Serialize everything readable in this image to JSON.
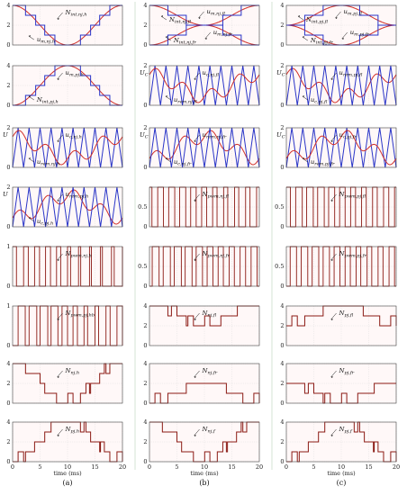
{
  "figure": {
    "column_labels": [
      "(a)",
      "(b)",
      "(c)"
    ],
    "x_axis_label": "time (ms)",
    "x_ticks": [
      0,
      5,
      10,
      15,
      20
    ],
    "colors": {
      "red": "#d0302a",
      "blue": "#2a35c8",
      "dark_red": "#8b1a14",
      "axis": "#444444",
      "grid": "#d8d8d8",
      "column_divider": "#ccddcc"
    }
  },
  "chart_data": [
    {
      "col": 0,
      "row": 0,
      "type": "line",
      "ylim": [
        0,
        4
      ],
      "y_ticks": [
        0,
        2,
        4
      ],
      "y_tick_labels": [
        "0",
        "2",
        "4"
      ],
      "ylabel": "",
      "grid": true,
      "series": [
        {
          "name": "u_m,nj,h",
          "kind": "cos",
          "center": 2,
          "amp": 2,
          "period": 20,
          "phase": 0,
          "color": "red"
        },
        {
          "name": "N_int,nj,h",
          "kind": "stair_cos",
          "center": 2,
          "amp": 2,
          "period": 20,
          "phase": 0,
          "color": "blue"
        }
      ],
      "annotations": [
        {
          "base": "N",
          "sub": "int,nj,h"
        },
        {
          "base": "u",
          "sub": "m,nj,h"
        }
      ]
    },
    {
      "col": 0,
      "row": 1,
      "type": "line",
      "ylim": [
        0,
        4
      ],
      "y_ticks": [
        0,
        2,
        4
      ],
      "y_tick_labels": [
        "0",
        "2",
        "4"
      ],
      "ylabel": "",
      "grid": true,
      "series": [
        {
          "name": "u_m,pj,h",
          "kind": "cos",
          "center": 2,
          "amp": -2,
          "period": 20,
          "phase": 0,
          "color": "red"
        },
        {
          "name": "N_int,pj,h",
          "kind": "stair_cos",
          "center": 2,
          "amp": -2,
          "period": 20,
          "phase": 0,
          "color": "blue"
        }
      ],
      "annotations": [
        {
          "base": "u",
          "sub": "m,pj,h"
        },
        {
          "base": "N",
          "sub": "int,pj,h"
        }
      ]
    },
    {
      "col": 0,
      "row": 2,
      "type": "line",
      "ylim": [
        0,
        2
      ],
      "y_ticks": [
        0,
        2
      ],
      "y_tick_labels": [
        "0",
        "2"
      ],
      "ylabel": "U",
      "grid": true,
      "series": [
        {
          "name": "u_c,nj,h",
          "kind": "tri",
          "center": 1,
          "amp": 1,
          "period": 2,
          "phase": 0,
          "color": "blue"
        },
        {
          "name": "u_rem,nj,h",
          "kind": "sinhf",
          "center": 1,
          "amp": 0.85,
          "period": 20,
          "phase": 0,
          "color": "red"
        }
      ],
      "annotations": [
        {
          "base": "u",
          "sub": "c,nj,h"
        },
        {
          "base": "u",
          "sub": "rem,nj,h"
        }
      ]
    },
    {
      "col": 0,
      "row": 3,
      "type": "line",
      "ylim": [
        0,
        2
      ],
      "y_ticks": [
        0,
        2
      ],
      "y_tick_labels": [
        "0",
        "2"
      ],
      "ylabel": "U",
      "grid": true,
      "series": [
        {
          "name": "u_rem,pj,h",
          "kind": "sinhf",
          "center": 1,
          "amp": 0.85,
          "period": 20,
          "phase": 1,
          "color": "red"
        },
        {
          "name": "u_c,pj,h",
          "kind": "tri",
          "center": 1,
          "amp": 1,
          "period": 2,
          "phase": 0,
          "color": "blue"
        }
      ],
      "annotations": [
        {
          "base": "u",
          "sub": "rem,pj,h"
        },
        {
          "base": "u",
          "sub": "c,pj,h"
        }
      ]
    },
    {
      "col": 0,
      "row": 4,
      "type": "line",
      "ylim": [
        0,
        1
      ],
      "y_ticks": [
        0,
        1
      ],
      "y_tick_labels": [
        "0",
        "1"
      ],
      "ylabel": "",
      "grid": true,
      "series": [
        {
          "name": "N_pwm,nj,h",
          "kind": "pwm",
          "period": 2,
          "duty": 0.3,
          "var": 0.15,
          "phase": 0,
          "color": "dark_red"
        }
      ],
      "annotations": [
        {
          "base": "N",
          "sub": "pwm,nj,h"
        }
      ]
    },
    {
      "col": 0,
      "row": 5,
      "type": "line",
      "ylim": [
        0,
        1
      ],
      "y_ticks": [
        0,
        1
      ],
      "y_tick_labels": [
        "0",
        "1"
      ],
      "ylabel": "",
      "grid": true,
      "series": [
        {
          "name": "N_pwm,pj,hb",
          "kind": "pwm",
          "period": 2,
          "duty": 0.5,
          "var": 0.2,
          "phase": 1,
          "color": "dark_red"
        }
      ],
      "annotations": [
        {
          "base": "N",
          "sub": "pwm,pj,hb"
        }
      ]
    },
    {
      "col": 0,
      "row": 6,
      "type": "line",
      "ylim": [
        0,
        4
      ],
      "y_ticks": [
        0,
        2,
        4
      ],
      "y_tick_labels": [
        "0",
        "2",
        "4"
      ],
      "ylabel": "",
      "grid": true,
      "series": [
        {
          "name": "N_nj,h",
          "kind": "stair_cos",
          "center": 2,
          "amp": 2,
          "period": 20,
          "phase": 0,
          "color": "dark_red",
          "wiggle": true
        }
      ],
      "annotations": [
        {
          "base": "N",
          "sub": "nj,h"
        }
      ]
    },
    {
      "col": 0,
      "row": 7,
      "type": "line",
      "ylim": [
        0,
        4
      ],
      "y_ticks": [
        0,
        2,
        4
      ],
      "y_tick_labels": [
        "0",
        "2",
        "4"
      ],
      "ylabel": "",
      "grid": true,
      "series": [
        {
          "name": "N_pj,h",
          "kind": "stair_cos",
          "center": 2,
          "amp": -2,
          "period": 20,
          "phase": 0,
          "color": "dark_red",
          "wiggle": true
        }
      ],
      "annotations": [
        {
          "base": "N",
          "sub": "pj,h"
        }
      ]
    },
    {
      "col": 1,
      "row": 0,
      "type": "line",
      "ylim": [
        0,
        4
      ],
      "y_ticks": [
        0,
        2,
        4
      ],
      "y_tick_labels": [
        "0",
        "2",
        "4"
      ],
      "ylabel": "",
      "grid": true,
      "series": [
        {
          "name": "u_m,nj,fl",
          "kind": "cos",
          "center": 3,
          "amp": 1,
          "period": 20,
          "phase": 0,
          "color": "red"
        },
        {
          "name": "N_int,nj,fl",
          "kind": "stair_cos",
          "center": 3,
          "amp": 1,
          "period": 20,
          "phase": 0,
          "color": "blue"
        },
        {
          "name": "u_m,nj,fr",
          "kind": "cos",
          "center": 1,
          "amp": -1,
          "period": 20,
          "phase": 0,
          "color": "red"
        },
        {
          "name": "N_int,nj,fr",
          "kind": "stair_cos",
          "center": 1,
          "amp": -1,
          "period": 20,
          "phase": 0,
          "color": "blue"
        }
      ],
      "annotations": [
        {
          "base": "u",
          "sub": "m,nj,fl"
        },
        {
          "base": "N",
          "sub": "int,nj,fl"
        },
        {
          "base": "u",
          "sub": "m,nj,fr"
        },
        {
          "base": "N",
          "sub": "int,nj,fr"
        }
      ]
    },
    {
      "col": 1,
      "row": 1,
      "type": "line",
      "ylim": [
        0,
        2
      ],
      "y_ticks": [
        0,
        2
      ],
      "y_tick_labels": [
        "0",
        "2"
      ],
      "ylabel": "U_C",
      "grid": true,
      "series": [
        {
          "name": "u_c,nj,fl",
          "kind": "tri",
          "center": 1,
          "amp": 1,
          "period": 2,
          "phase": 0,
          "color": "blue"
        },
        {
          "name": "u_rem,nj,fl",
          "kind": "sinhf",
          "center": 1,
          "amp": 0.85,
          "period": 20,
          "phase": 0,
          "color": "red"
        }
      ],
      "annotations": [
        {
          "base": "u",
          "sub": "c,nj,fl"
        },
        {
          "base": "u",
          "sub": "rem,nj,fl"
        }
      ]
    },
    {
      "col": 1,
      "row": 2,
      "type": "line",
      "ylim": [
        0,
        2
      ],
      "y_ticks": [
        0,
        2
      ],
      "y_tick_labels": [
        "0",
        "2"
      ],
      "ylabel": "U_C",
      "grid": true,
      "series": [
        {
          "name": "u_rem,nj,fr",
          "kind": "sinhf",
          "center": 1,
          "amp": 0.85,
          "period": 20,
          "phase": 1,
          "color": "red"
        },
        {
          "name": "u_c,nj,fr",
          "kind": "tri",
          "center": 1,
          "amp": 1,
          "period": 2,
          "phase": 0,
          "color": "blue"
        }
      ],
      "annotations": [
        {
          "base": "u",
          "sub": "rem,nj,fr"
        },
        {
          "base": "u",
          "sub": "c,nj,fr"
        }
      ]
    },
    {
      "col": 1,
      "row": 3,
      "type": "line",
      "ylim": [
        0,
        1
      ],
      "y_ticks": [
        0,
        0.5
      ],
      "y_tick_labels": [
        "0",
        "0.5"
      ],
      "ylabel": "",
      "grid": true,
      "series": [
        {
          "name": "N_pwm,nj,fl",
          "kind": "pwm",
          "period": 2,
          "duty": 0.45,
          "var": 0.1,
          "phase": 0.5,
          "color": "dark_red"
        }
      ],
      "annotations": [
        {
          "base": "N",
          "sub": "pwm,nj,fl"
        }
      ]
    },
    {
      "col": 1,
      "row": 4,
      "type": "line",
      "ylim": [
        0,
        1
      ],
      "y_ticks": [
        0,
        0.5
      ],
      "y_tick_labels": [
        "0",
        "0.5"
      ],
      "ylabel": "",
      "grid": true,
      "series": [
        {
          "name": "N_pwm,nj,fr",
          "kind": "pwm",
          "period": 2,
          "duty": 0.55,
          "var": 0.1,
          "phase": 1.5,
          "color": "dark_red"
        }
      ],
      "annotations": [
        {
          "base": "N",
          "sub": "pwm,nj,fr"
        }
      ]
    },
    {
      "col": 1,
      "row": 5,
      "type": "line",
      "ylim": [
        0,
        4
      ],
      "y_ticks": [
        0,
        2,
        4
      ],
      "y_tick_labels": [
        "0",
        "2",
        "4"
      ],
      "ylabel": "",
      "grid": true,
      "series": [
        {
          "name": "N_nj,fl",
          "kind": "stair_cos",
          "center": 3,
          "amp": 1,
          "period": 20,
          "phase": 0,
          "color": "dark_red",
          "wiggle": true
        }
      ],
      "annotations": [
        {
          "base": "N",
          "sub": "nj,fl"
        }
      ]
    },
    {
      "col": 1,
      "row": 6,
      "type": "line",
      "ylim": [
        0,
        4
      ],
      "y_ticks": [
        0,
        2,
        4
      ],
      "y_tick_labels": [
        "0",
        "2",
        "4"
      ],
      "ylabel": "",
      "grid": true,
      "series": [
        {
          "name": "N_nj,fr",
          "kind": "stair_cos",
          "center": 1,
          "amp": -1,
          "period": 20,
          "phase": 0,
          "color": "dark_red",
          "wiggle": true
        }
      ],
      "annotations": [
        {
          "base": "N",
          "sub": "nj,fr"
        }
      ]
    },
    {
      "col": 1,
      "row": 7,
      "type": "line",
      "ylim": [
        0,
        4
      ],
      "y_ticks": [
        0,
        2,
        4
      ],
      "y_tick_labels": [
        "0",
        "2",
        "4"
      ],
      "ylabel": "",
      "grid": true,
      "series": [
        {
          "name": "N_nj,f",
          "kind": "stair_cos",
          "center": 2,
          "amp": 2,
          "period": 20,
          "phase": 0,
          "color": "dark_red",
          "wiggle": true
        }
      ],
      "annotations": [
        {
          "base": "N",
          "sub": "nj,f"
        }
      ]
    },
    {
      "col": 2,
      "row": 0,
      "type": "line",
      "ylim": [
        0,
        4
      ],
      "y_ticks": [
        0,
        2,
        4
      ],
      "y_tick_labels": [
        "0",
        "2",
        "4"
      ],
      "ylabel": "",
      "grid": true,
      "series": [
        {
          "name": "u_m,pj,fl",
          "kind": "cos",
          "center": 3,
          "amp": -1,
          "period": 20,
          "phase": 0,
          "color": "red"
        },
        {
          "name": "N_int,pj,fl",
          "kind": "stair_cos",
          "center": 3,
          "amp": -1,
          "period": 20,
          "phase": 0,
          "color": "blue"
        },
        {
          "name": "u_m,pj,fr",
          "kind": "cos",
          "center": 1,
          "amp": 1,
          "period": 20,
          "phase": 0,
          "color": "red"
        },
        {
          "name": "N_int,pj,fr",
          "kind": "stair_cos",
          "center": 1,
          "amp": 1,
          "period": 20,
          "phase": 0,
          "color": "blue"
        }
      ],
      "annotations": [
        {
          "base": "u",
          "sub": "m,pj,fl"
        },
        {
          "base": "N",
          "sub": "int,pj,fl"
        },
        {
          "base": "u",
          "sub": "m,pj,fr"
        },
        {
          "base": "N",
          "sub": "int,pj,fr"
        }
      ]
    },
    {
      "col": 2,
      "row": 1,
      "type": "line",
      "ylim": [
        0,
        2
      ],
      "y_ticks": [
        0,
        2
      ],
      "y_tick_labels": [
        "0",
        "2"
      ],
      "ylabel": "U_C",
      "grid": true,
      "series": [
        {
          "name": "u_rem,pj,fl",
          "kind": "sinhf",
          "center": 1,
          "amp": 0.85,
          "period": 20,
          "phase": 0,
          "color": "red"
        },
        {
          "name": "u_c,pj,fl",
          "kind": "tri",
          "center": 1,
          "amp": 1,
          "period": 2,
          "phase": 0,
          "color": "blue"
        }
      ],
      "annotations": [
        {
          "base": "u",
          "sub": "rem,pj,fl"
        },
        {
          "base": "u",
          "sub": "c,pj,fl"
        }
      ]
    },
    {
      "col": 2,
      "row": 2,
      "type": "line",
      "ylim": [
        0,
        2
      ],
      "y_ticks": [
        0,
        2
      ],
      "y_tick_labels": [
        "0",
        "2"
      ],
      "ylabel": "U_C",
      "grid": true,
      "series": [
        {
          "name": "u_c,pj,fr",
          "kind": "tri",
          "center": 1,
          "amp": 1,
          "period": 2,
          "phase": 0,
          "color": "blue"
        },
        {
          "name": "u_rem,pj,fr",
          "kind": "sinhf",
          "center": 1,
          "amp": 0.85,
          "period": 20,
          "phase": 1,
          "color": "red"
        }
      ],
      "annotations": [
        {
          "base": "u",
          "sub": "c,pj,fr"
        },
        {
          "base": "u",
          "sub": "rem,pj,fr"
        }
      ]
    },
    {
      "col": 2,
      "row": 3,
      "type": "line",
      "ylim": [
        0,
        1
      ],
      "y_ticks": [
        0,
        0.5
      ],
      "y_tick_labels": [
        "0",
        "0.5"
      ],
      "ylabel": "",
      "grid": true,
      "series": [
        {
          "name": "N_pwm,pj,fl",
          "kind": "pwm",
          "period": 2,
          "duty": 0.5,
          "var": 0.1,
          "phase": 0.3,
          "color": "dark_red"
        }
      ],
      "annotations": [
        {
          "base": "N",
          "sub": "pwm,pj,fl"
        }
      ]
    },
    {
      "col": 2,
      "row": 4,
      "type": "line",
      "ylim": [
        0,
        1
      ],
      "y_ticks": [
        0,
        0.5
      ],
      "y_tick_labels": [
        "0",
        "0.5"
      ],
      "ylabel": "",
      "grid": true,
      "series": [
        {
          "name": "N_pwm,pj,fr",
          "kind": "pwm",
          "period": 2,
          "duty": 0.5,
          "var": 0.1,
          "phase": 1.3,
          "color": "dark_red"
        }
      ],
      "annotations": [
        {
          "base": "N",
          "sub": "pwm,pj,fr"
        }
      ]
    },
    {
      "col": 2,
      "row": 5,
      "type": "line",
      "ylim": [
        0,
        4
      ],
      "y_ticks": [
        0,
        2,
        4
      ],
      "y_tick_labels": [
        "0",
        "2",
        "4"
      ],
      "ylabel": "",
      "grid": true,
      "series": [
        {
          "name": "N_pj,fl",
          "kind": "stair_cos",
          "center": 3,
          "amp": -1,
          "period": 20,
          "phase": 0,
          "color": "dark_red",
          "wiggle": true
        }
      ],
      "annotations": [
        {
          "base": "N",
          "sub": "pj,fl"
        }
      ]
    },
    {
      "col": 2,
      "row": 6,
      "type": "line",
      "ylim": [
        0,
        4
      ],
      "y_ticks": [
        0,
        2,
        4
      ],
      "y_tick_labels": [
        "0",
        "2",
        "4"
      ],
      "ylabel": "",
      "grid": true,
      "series": [
        {
          "name": "N_pj,fr",
          "kind": "stair_cos",
          "center": 1,
          "amp": 1,
          "period": 20,
          "phase": 0,
          "color": "dark_red",
          "wiggle": true
        }
      ],
      "annotations": [
        {
          "base": "N",
          "sub": "pj,fr"
        }
      ]
    },
    {
      "col": 2,
      "row": 7,
      "type": "line",
      "ylim": [
        0,
        4
      ],
      "y_ticks": [
        0,
        2,
        4
      ],
      "y_tick_labels": [
        "0",
        "2",
        "4"
      ],
      "ylabel": "",
      "grid": true,
      "series": [
        {
          "name": "N_pj,f",
          "kind": "stair_cos",
          "center": 2,
          "amp": -2,
          "period": 20,
          "phase": 0,
          "color": "dark_red",
          "wiggle": true
        }
      ],
      "annotations": [
        {
          "base": "N",
          "sub": "pj,f"
        }
      ]
    }
  ]
}
